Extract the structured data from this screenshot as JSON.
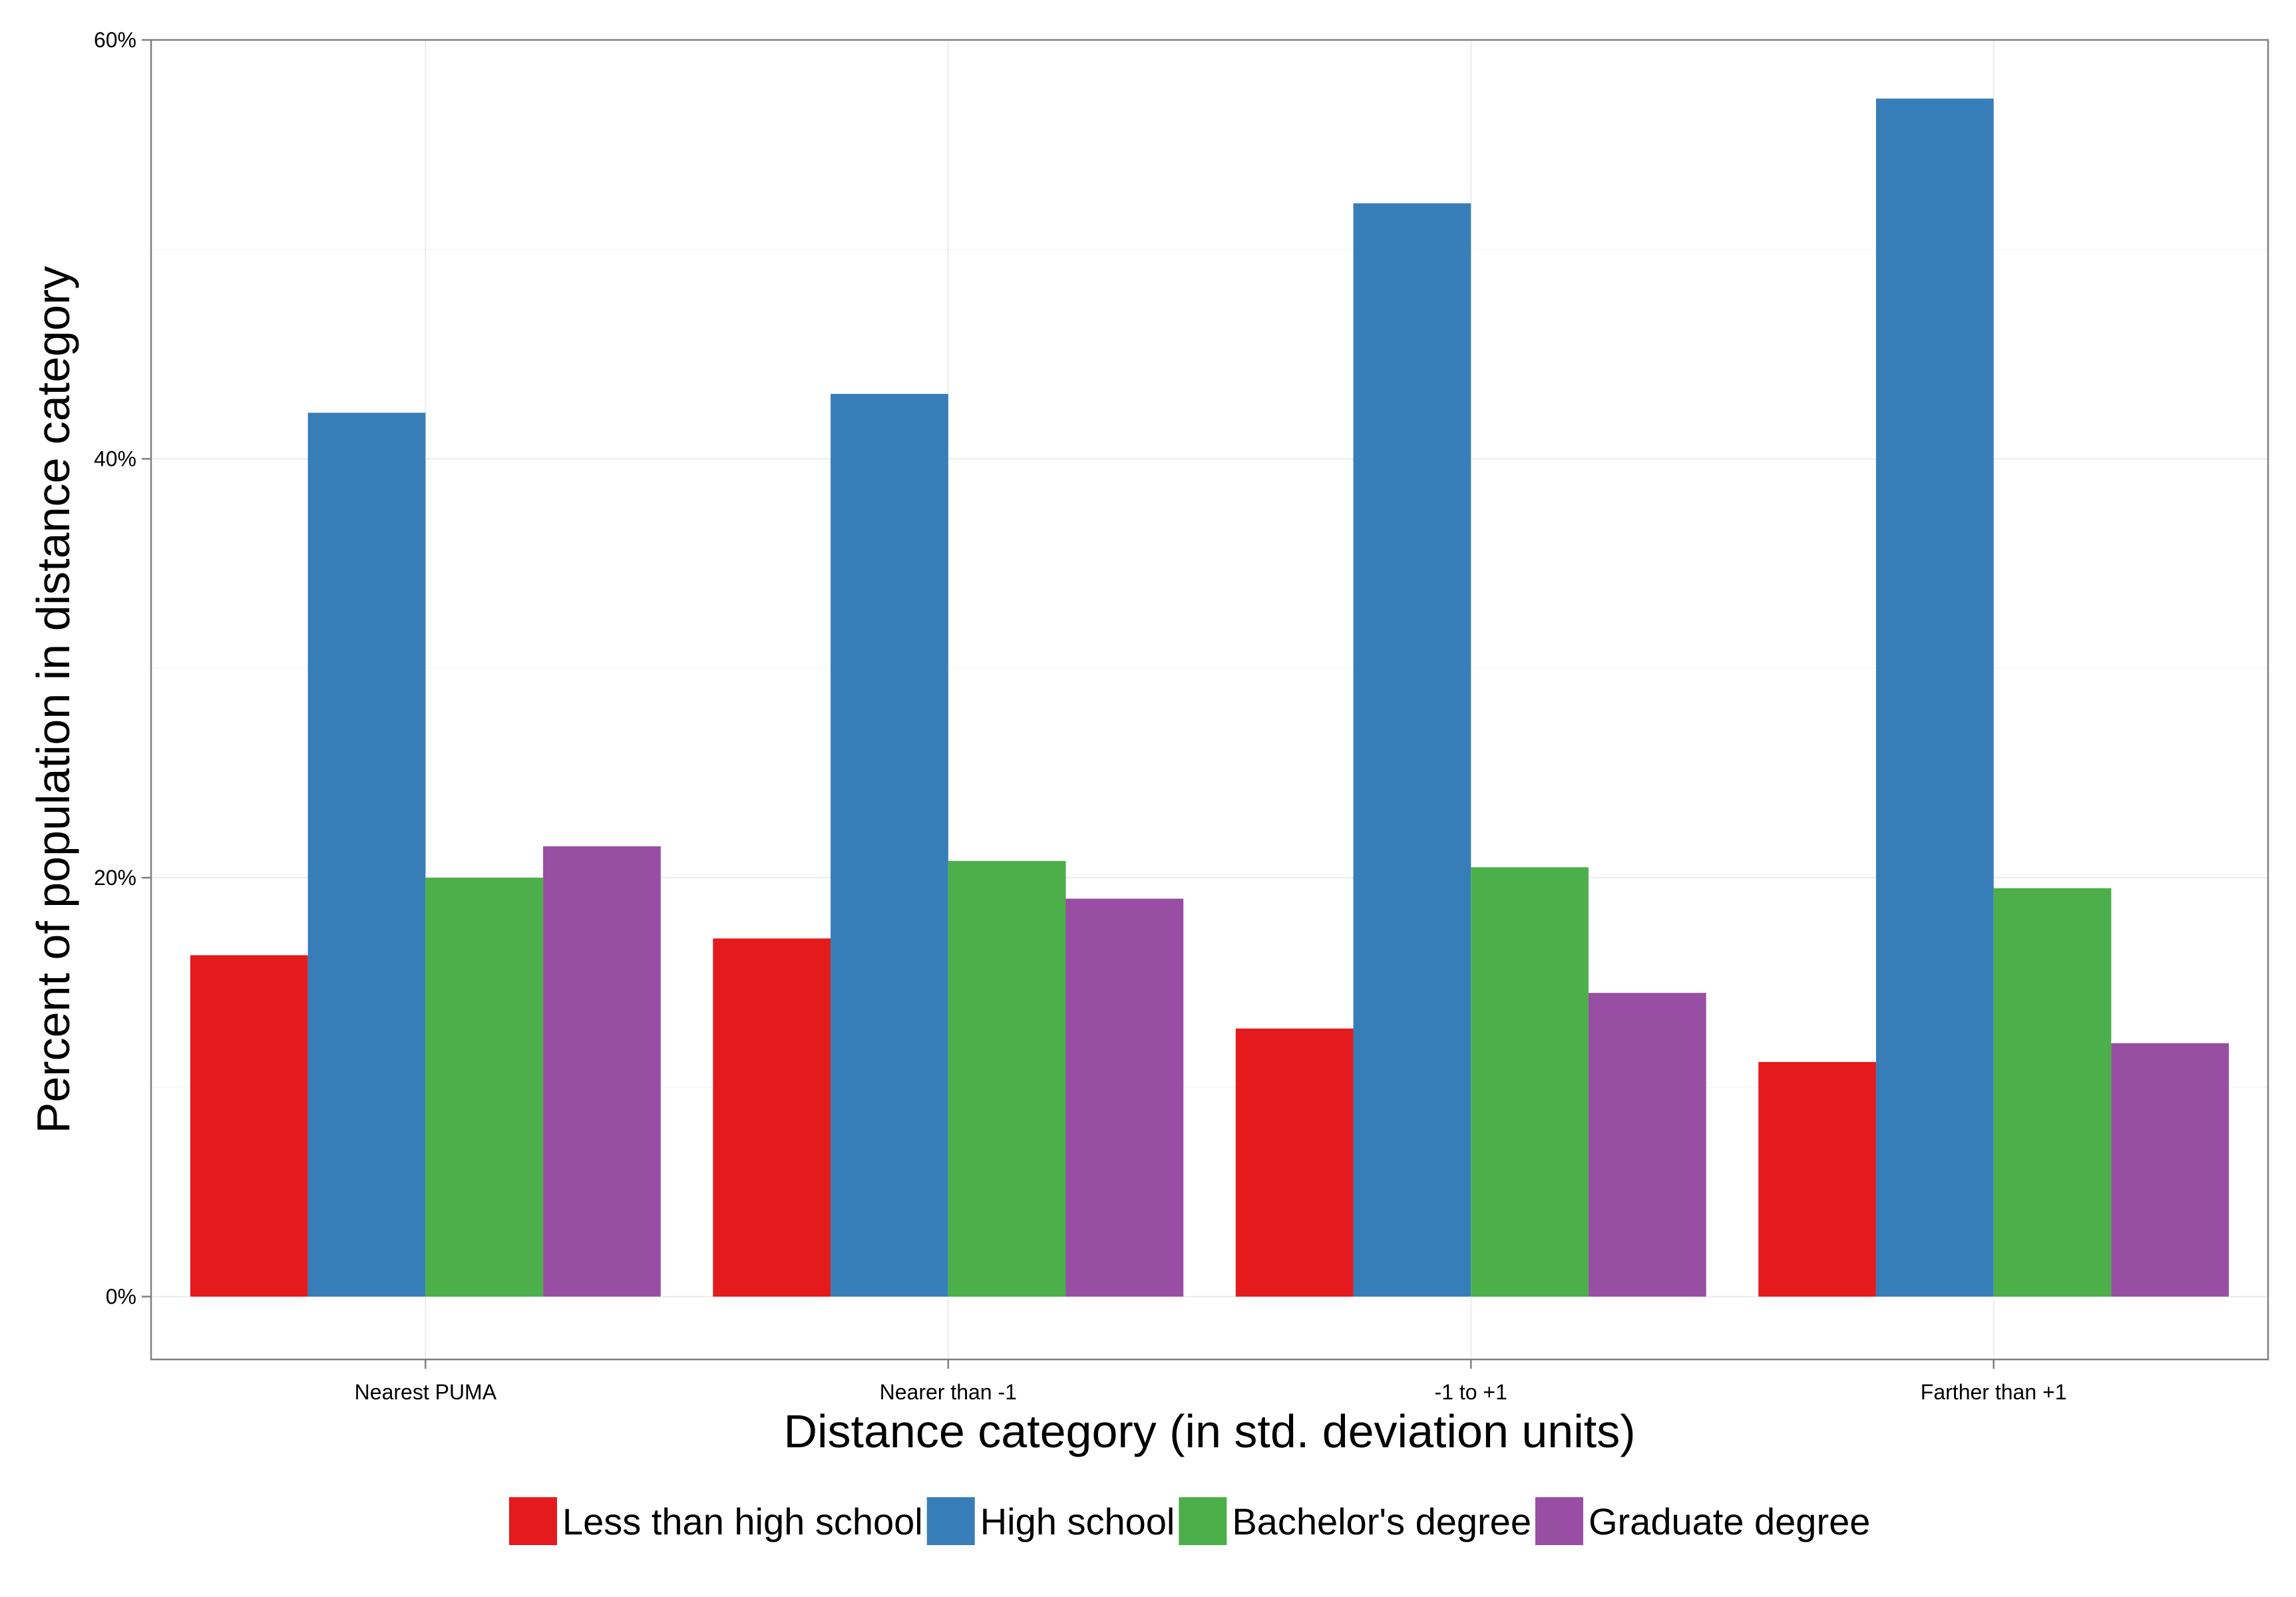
{
  "chart_data": {
    "type": "bar",
    "title": "",
    "xlabel": "Distance category (in std. deviation units)",
    "ylabel": "Percent of population in distance category",
    "ylim": [
      -3,
      60
    ],
    "yticks": [
      0,
      20,
      40,
      60
    ],
    "ytick_labels": [
      "0%",
      "20%",
      "40%",
      "60%"
    ],
    "grid": true,
    "legend_position": "bottom",
    "categories": [
      "Nearest PUMA",
      "Nearer than -1",
      "-1 to +1",
      "Farther than +1"
    ],
    "series": [
      {
        "name": "Less than high school",
        "color": "#e41a1c",
        "values": [
          16.3,
          17.1,
          12.8,
          11.2
        ]
      },
      {
        "name": "High school",
        "color": "#377eb8",
        "values": [
          42.2,
          43.1,
          52.2,
          57.2
        ]
      },
      {
        "name": "Bachelor's degree",
        "color": "#4daf4a",
        "values": [
          20.0,
          20.8,
          20.5,
          19.5
        ]
      },
      {
        "name": "Graduate degree",
        "color": "#984ea3",
        "values": [
          21.5,
          19.0,
          14.5,
          12.1
        ]
      }
    ]
  }
}
